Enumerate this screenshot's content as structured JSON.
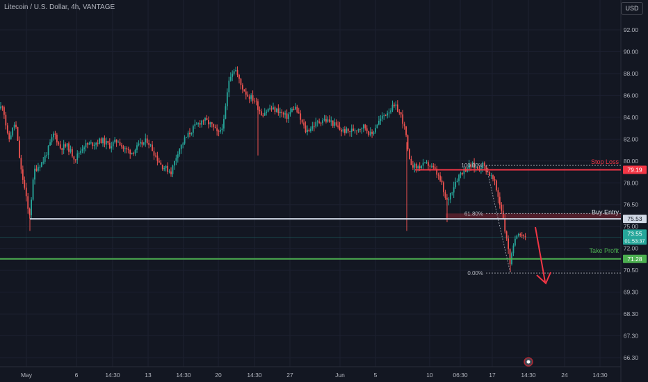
{
  "header": {
    "symbol_title": "Litecoin / U.S. Dollar, 4h, VANTAGE",
    "currency_button": "USD"
  },
  "colors": {
    "background": "#131722",
    "up": "#26a69a",
    "down": "#ef5350",
    "stop_loss": "#f23645",
    "take_profit": "#4caf50",
    "entry": "#d1d9e6"
  },
  "chart_data": {
    "type": "candlestick",
    "y_axis": {
      "range": [
        65.6,
        93.6
      ],
      "ticks": [
        "92.00",
        "90.00",
        "88.00",
        "86.00",
        "84.00",
        "82.00",
        "80.00",
        "78.00",
        "76.50",
        "75.00",
        "72.00",
        "70.50",
        "69.30",
        "68.30",
        "67.30",
        "66.30"
      ]
    },
    "x_axis": {
      "ticks": [
        "May",
        "6",
        "14:30",
        "13",
        "14:30",
        "20",
        "14:30",
        "27",
        "Jun",
        "5",
        "10",
        "06:30",
        "17",
        "14:30",
        "24",
        "14:30"
      ]
    },
    "levels": {
      "stop_loss": {
        "label": "Stop Loss",
        "value": 79.19,
        "tag": "79.19"
      },
      "buy_entry": {
        "label": "Buy Entry",
        "value": 75.53,
        "tag": "75.53"
      },
      "take_profit": {
        "label": "Take Profit",
        "value": 71.28,
        "tag": "71.28"
      },
      "last_price": {
        "tag": "73.55",
        "countdown": "01:53:37",
        "value": 73.55
      }
    },
    "fibonacci": [
      {
        "label": "100.00%",
        "value": 79.6
      },
      {
        "label": "61.80%",
        "value": 75.9
      },
      {
        "label": "0.00%",
        "value": 70.35
      }
    ],
    "path": [
      [
        0,
        84.8
      ],
      [
        4,
        85.2
      ],
      [
        12,
        81.8
      ],
      [
        22,
        83.6
      ],
      [
        30,
        79.2
      ],
      [
        42,
        75.6
      ],
      [
        50,
        79.2
      ],
      [
        62,
        80.0
      ],
      [
        70,
        81.2
      ],
      [
        78,
        82.6
      ],
      [
        86,
        81.2
      ],
      [
        96,
        81.4
      ],
      [
        108,
        80.2
      ],
      [
        120,
        81.4
      ],
      [
        134,
        81.6
      ],
      [
        146,
        81.9
      ],
      [
        158,
        81.4
      ],
      [
        170,
        81.9
      ],
      [
        178,
        81.1
      ],
      [
        190,
        80.8
      ],
      [
        200,
        81.4
      ],
      [
        212,
        81.9
      ],
      [
        222,
        80.7
      ],
      [
        232,
        79.6
      ],
      [
        246,
        79.0
      ],
      [
        256,
        80.9
      ],
      [
        266,
        82.0
      ],
      [
        278,
        83.0
      ],
      [
        292,
        83.8
      ],
      [
        304,
        83.3
      ],
      [
        314,
        82.4
      ],
      [
        322,
        83.6
      ],
      [
        330,
        87.8
      ],
      [
        338,
        88.5
      ],
      [
        346,
        87.0
      ],
      [
        356,
        86.0
      ],
      [
        366,
        85.6
      ],
      [
        376,
        84.3
      ],
      [
        388,
        84.8
      ],
      [
        400,
        84.6
      ],
      [
        412,
        84.0
      ],
      [
        424,
        85.0
      ],
      [
        432,
        83.8
      ],
      [
        440,
        82.7
      ],
      [
        452,
        83.3
      ],
      [
        464,
        83.8
      ],
      [
        476,
        83.6
      ],
      [
        490,
        82.8
      ],
      [
        502,
        82.7
      ],
      [
        514,
        83.0
      ],
      [
        524,
        83.2
      ],
      [
        534,
        82.3
      ],
      [
        542,
        83.4
      ],
      [
        554,
        84.3
      ],
      [
        564,
        84.9
      ],
      [
        570,
        84.9
      ],
      [
        578,
        84.0
      ],
      [
        584,
        82.3
      ],
      [
        588,
        80.0
      ],
      [
        598,
        79.4
      ],
      [
        608,
        79.6
      ],
      [
        616,
        79.7
      ],
      [
        626,
        79.1
      ],
      [
        634,
        78.1
      ],
      [
        642,
        76.6
      ],
      [
        652,
        77.8
      ],
      [
        662,
        78.9
      ],
      [
        672,
        79.4
      ],
      [
        680,
        79.6
      ],
      [
        688,
        79.3
      ],
      [
        694,
        79.7
      ],
      [
        702,
        79.0
      ],
      [
        710,
        78.2
      ],
      [
        718,
        76.8
      ],
      [
        724,
        75.6
      ],
      [
        730,
        72.5
      ],
      [
        734,
        70.9
      ],
      [
        738,
        72.0
      ],
      [
        742,
        73.9
      ],
      [
        746,
        74.2
      ],
      [
        752,
        73.8
      ],
      [
        758,
        73.55
      ]
    ],
    "wicks": [
      {
        "x": 43,
        "low": 74.4
      },
      {
        "x": 371,
        "low": 80.5
      },
      {
        "x": 585,
        "low": 74.4
      },
      {
        "x": 643,
        "low": 75.3
      },
      {
        "x": 734,
        "low": 70.4
      }
    ]
  }
}
